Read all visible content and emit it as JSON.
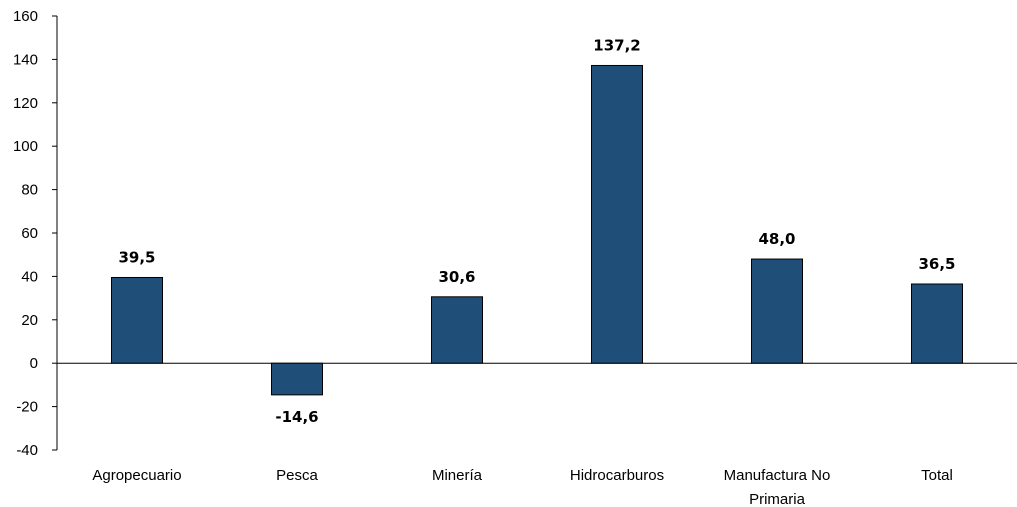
{
  "chart_data": {
    "type": "bar",
    "title": "",
    "xlabel": "",
    "ylabel": "",
    "categories": [
      [
        "Agropecuario"
      ],
      [
        "Pesca"
      ],
      [
        "Minería"
      ],
      [
        "Hidrocarburos"
      ],
      [
        "Manufactura No",
        "Primaria"
      ],
      [
        "Total"
      ]
    ],
    "values": [
      39.5,
      -14.6,
      30.6,
      137.2,
      48.0,
      36.5
    ],
    "value_labels": [
      "39,5",
      "-14,6",
      "30,6",
      "137,2",
      "48,0",
      "36,5"
    ],
    "ylim": [
      -40,
      160
    ],
    "yticks": [
      -40,
      -20,
      0,
      20,
      40,
      60,
      80,
      100,
      120,
      140,
      160
    ],
    "ytick_labels": [
      "-40",
      "-20",
      "0",
      "20",
      "40",
      "60",
      "80",
      "100",
      "120",
      "140",
      "160"
    ],
    "grid": false,
    "bar_color": "#1F4E79",
    "bar_edge_color": "#000000"
  }
}
